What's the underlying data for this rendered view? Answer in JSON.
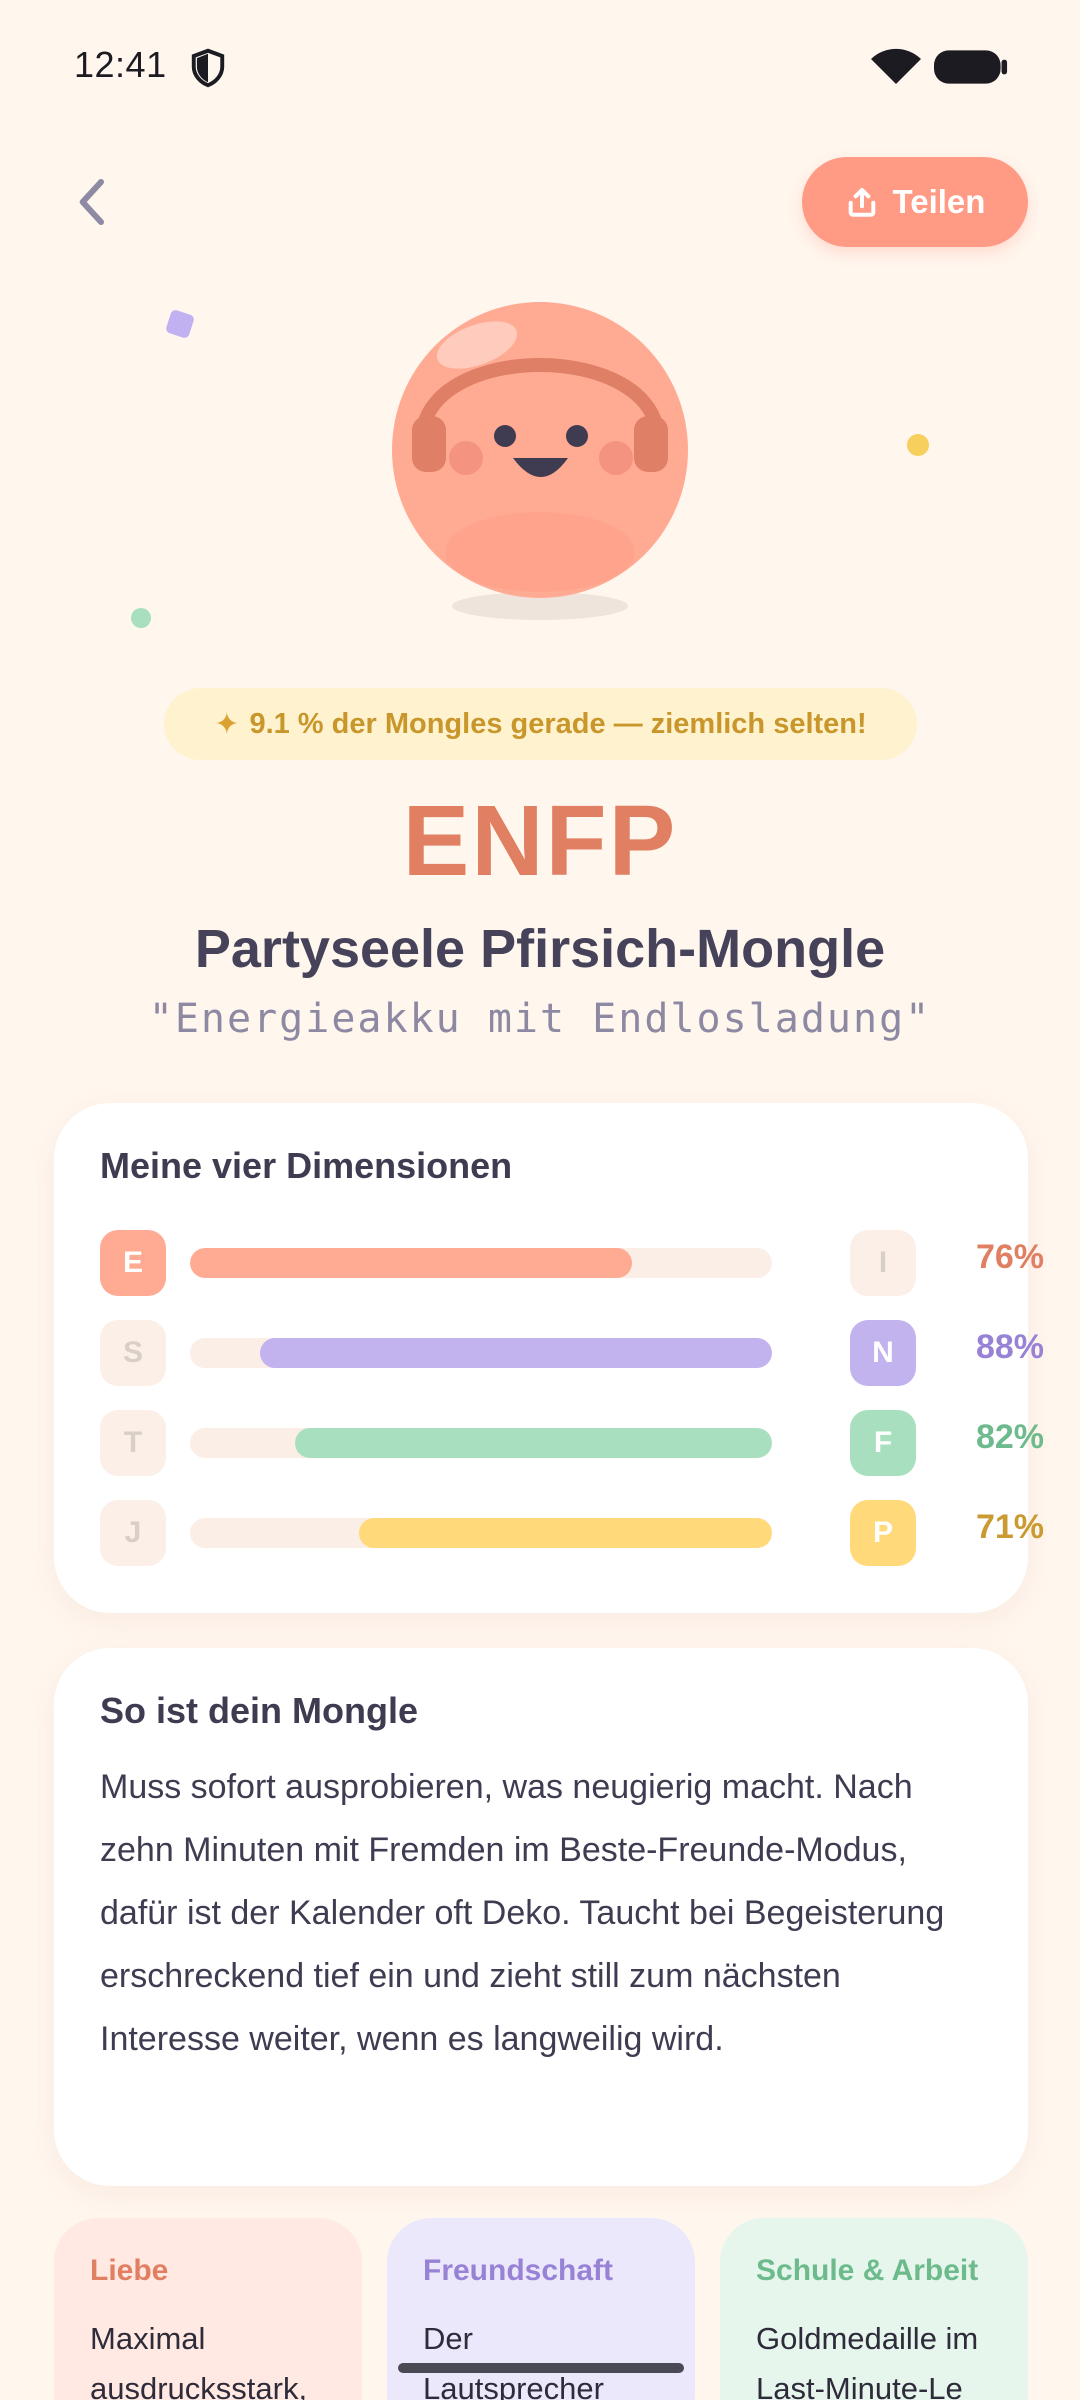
{
  "status_bar": {
    "time": "12:41"
  },
  "header": {
    "share_label": "Teilen"
  },
  "rarity": {
    "text": "9.1 % der Mongles gerade — ziemlich selten!"
  },
  "type": {
    "code": "ENFP",
    "name": "Partyseele Pfirsich-Mongle",
    "motto": "\"Energieakku mit Endlosladung\""
  },
  "dimensions": {
    "title": "Meine vier Dimensionen",
    "rows": [
      {
        "left": "E",
        "right": "I",
        "dominant": "left",
        "percent_label": "76%",
        "value": 0.76,
        "color": "#ffab94",
        "text_color": "#e07f62"
      },
      {
        "left": "S",
        "right": "N",
        "dominant": "right",
        "percent_label": "88%",
        "value": 0.88,
        "color": "#c2b2ee",
        "text_color": "#9782d6"
      },
      {
        "left": "T",
        "right": "F",
        "dominant": "right",
        "percent_label": "82%",
        "value": 0.82,
        "color": "#a8e0bf",
        "text_color": "#6dbb8c"
      },
      {
        "left": "J",
        "right": "P",
        "dominant": "right",
        "percent_label": "71%",
        "value": 0.71,
        "color": "#ffd97a",
        "text_color": "#c99b30"
      }
    ]
  },
  "personality": {
    "title": "So ist dein Mongle",
    "text": "Muss sofort ausprobieren, was neugierig macht. Nach zehn Minuten mit Fremden im Beste-Freunde-Modus, dafür ist der Kalender oft Deko. Taucht bei Begeisterung erschreckend tief ein und zieht still zum nächsten Interesse weiter, wenn es langweilig wird."
  },
  "categories": [
    {
      "title": "Liebe",
      "text": "Maximal ausdrucksstark,",
      "bg": "#ffe9e2",
      "title_color": "#e07f62"
    },
    {
      "title": "Freundschaft",
      "text": "Der Lautsprecher",
      "bg": "#ece8fb",
      "title_color": "#9782d6"
    },
    {
      "title": "Schule & Arbeit",
      "text": "Goldmedaille im Last-Minute-Le",
      "bg": "#e6f6ec",
      "title_color": "#6dbb8c"
    }
  ]
}
